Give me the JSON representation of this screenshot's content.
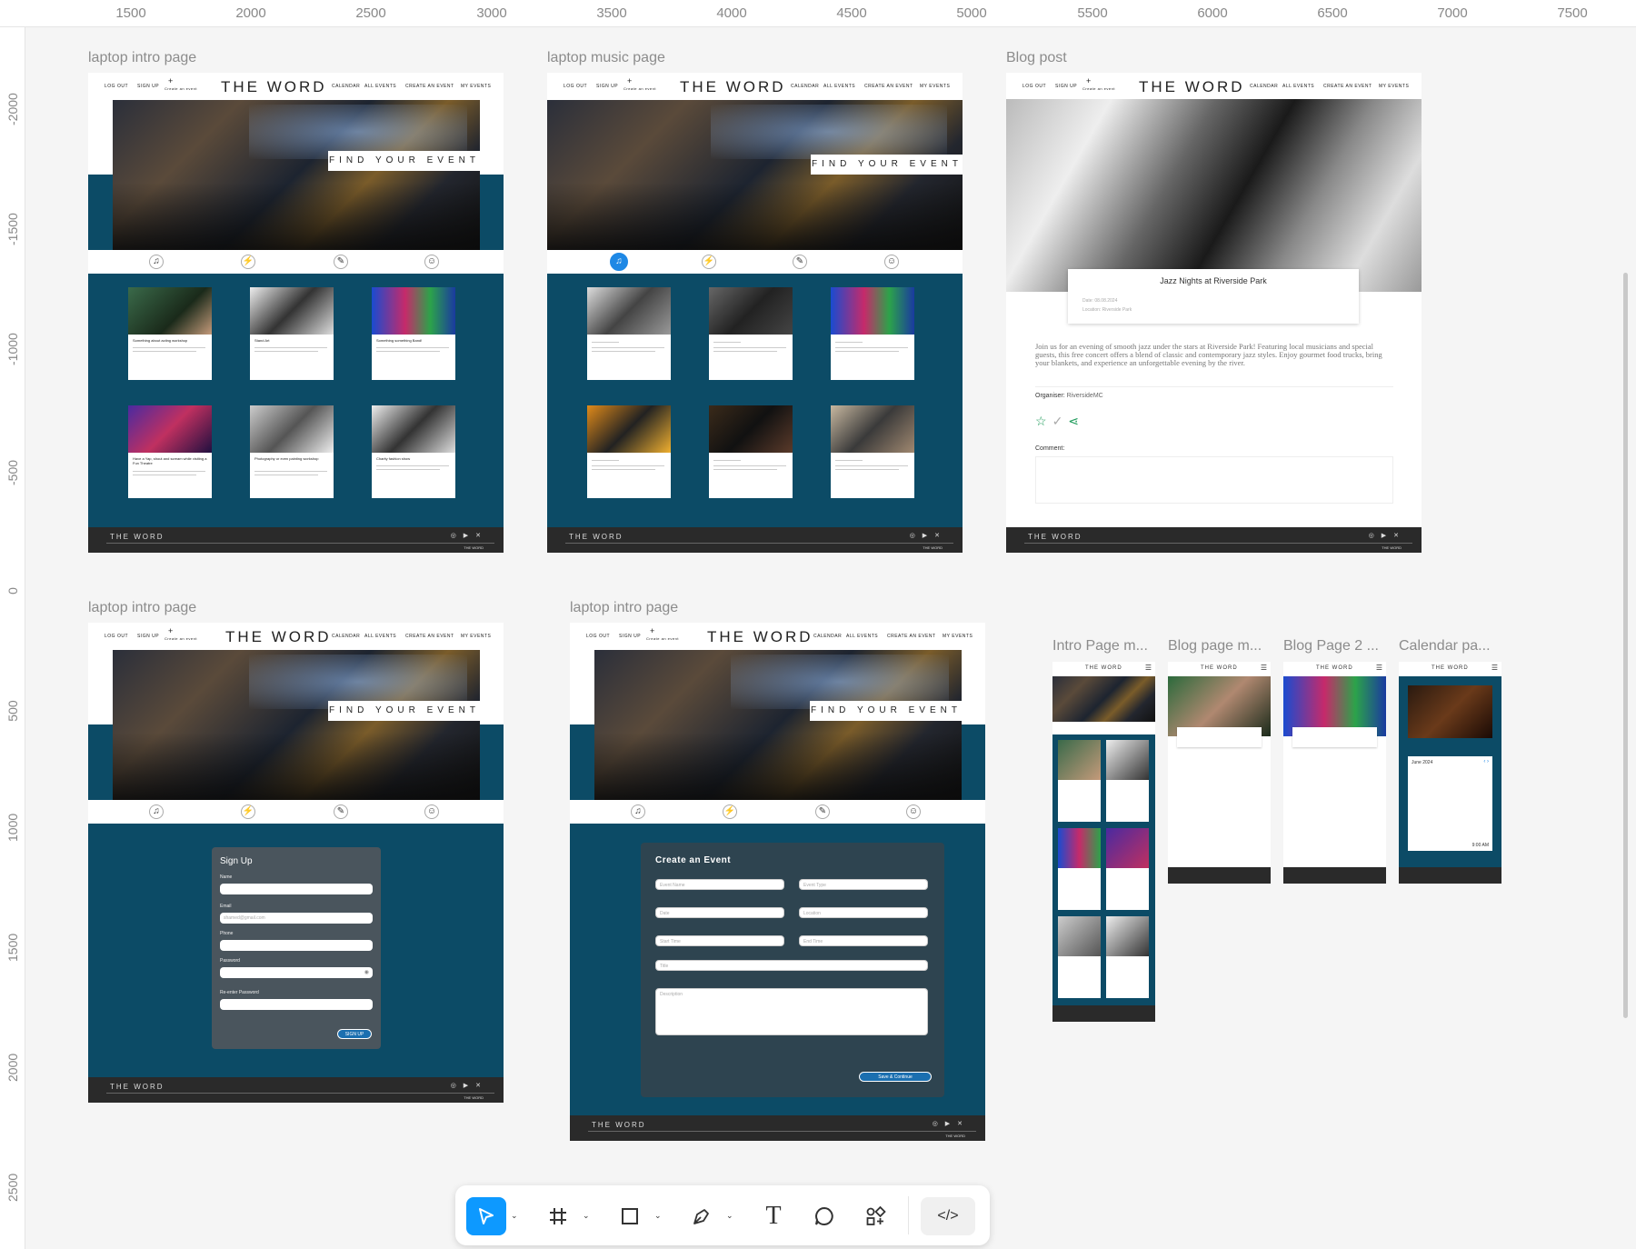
{
  "ruler": {
    "top": [
      "1500",
      "2000",
      "2500",
      "3000",
      "3500",
      "4000",
      "4500",
      "5000",
      "5500",
      "6000",
      "6500",
      "7000",
      "7500"
    ],
    "left": [
      "-2000",
      "-1500",
      "-1000",
      "-500",
      "0",
      "500",
      "1000",
      "1500",
      "2000",
      "2500"
    ]
  },
  "frames": {
    "f1_label": "laptop intro page",
    "f2_label": "laptop music page",
    "f3_label": "Blog post",
    "f4_label": "laptop intro page",
    "f5_label": "laptop intro page",
    "m1_label": "Intro Page m...",
    "m2_label": "Blog page m...",
    "m3_label": "Blog Page 2 ...",
    "m4_label": "Calendar pa..."
  },
  "site": {
    "nav_logout": "LOG OUT",
    "nav_signup": "SIGN UP",
    "nav_create_small": "Create an event",
    "brand": "THE WORD",
    "nav_calendar": "CALENDAR",
    "nav_all_events": "ALL EVENTS",
    "nav_create": "CREATE AN EVENT",
    "nav_my_events": "MY EVENTS",
    "find": "FIND YOUR EVENT",
    "footer_brand": "THE WORD",
    "footer_small": "THE WORD"
  },
  "intro_cards": [
    {
      "title": "Something about acting workshop"
    },
    {
      "title": "Stand Art"
    },
    {
      "title": "Something something Band!"
    },
    {
      "title": "Have a Yap, shout and scream while visiting a Fun Theatre"
    },
    {
      "title": "Photography or even painting workshop"
    },
    {
      "title": "Charity fashion show"
    }
  ],
  "blog": {
    "title": "Jazz Nights at Riverside Park",
    "date": "Date: 08.08.2024",
    "location": "Location: Riverside Park",
    "body": "Join us for an evening of smooth jazz under the stars at Riverside Park! Featuring local musicians and special guests, this free concert offers a blend of classic and contemporary jazz styles. Enjoy gourmet food trucks, bring your blankets, and experience an unforgettable evening by the river.",
    "organiser_label": "Organiser:",
    "organiser": "RiversideMC",
    "comment_label": "Comment:"
  },
  "signup": {
    "title": "Sign Up",
    "name": "Name",
    "email": "Email",
    "email_ph": "shamed@gmail.com",
    "phone": "Phone",
    "password": "Password",
    "reenter": "Re-enter Password",
    "button": "SIGN UP"
  },
  "create": {
    "title": "Create an Event",
    "event_name": "Event Name",
    "event_type": "Event Type",
    "date": "Date",
    "location": "Location",
    "start": "Start Time",
    "end": "End Time",
    "title_ph": "Title",
    "desc": "Description",
    "button": "Save & Continue"
  },
  "calendar": {
    "month": "June 2024",
    "time": "9:00 AM"
  },
  "toolbar": {
    "move": "move-tool",
    "frame": "frame-tool",
    "shape": "rectangle-tool",
    "pen": "pen-tool",
    "text": "T",
    "comment": "comment-tool",
    "actions": "actions-tool",
    "dev": "</>"
  },
  "colors": {
    "teal": "#0c4b66",
    "accent": "#0d99ff"
  }
}
